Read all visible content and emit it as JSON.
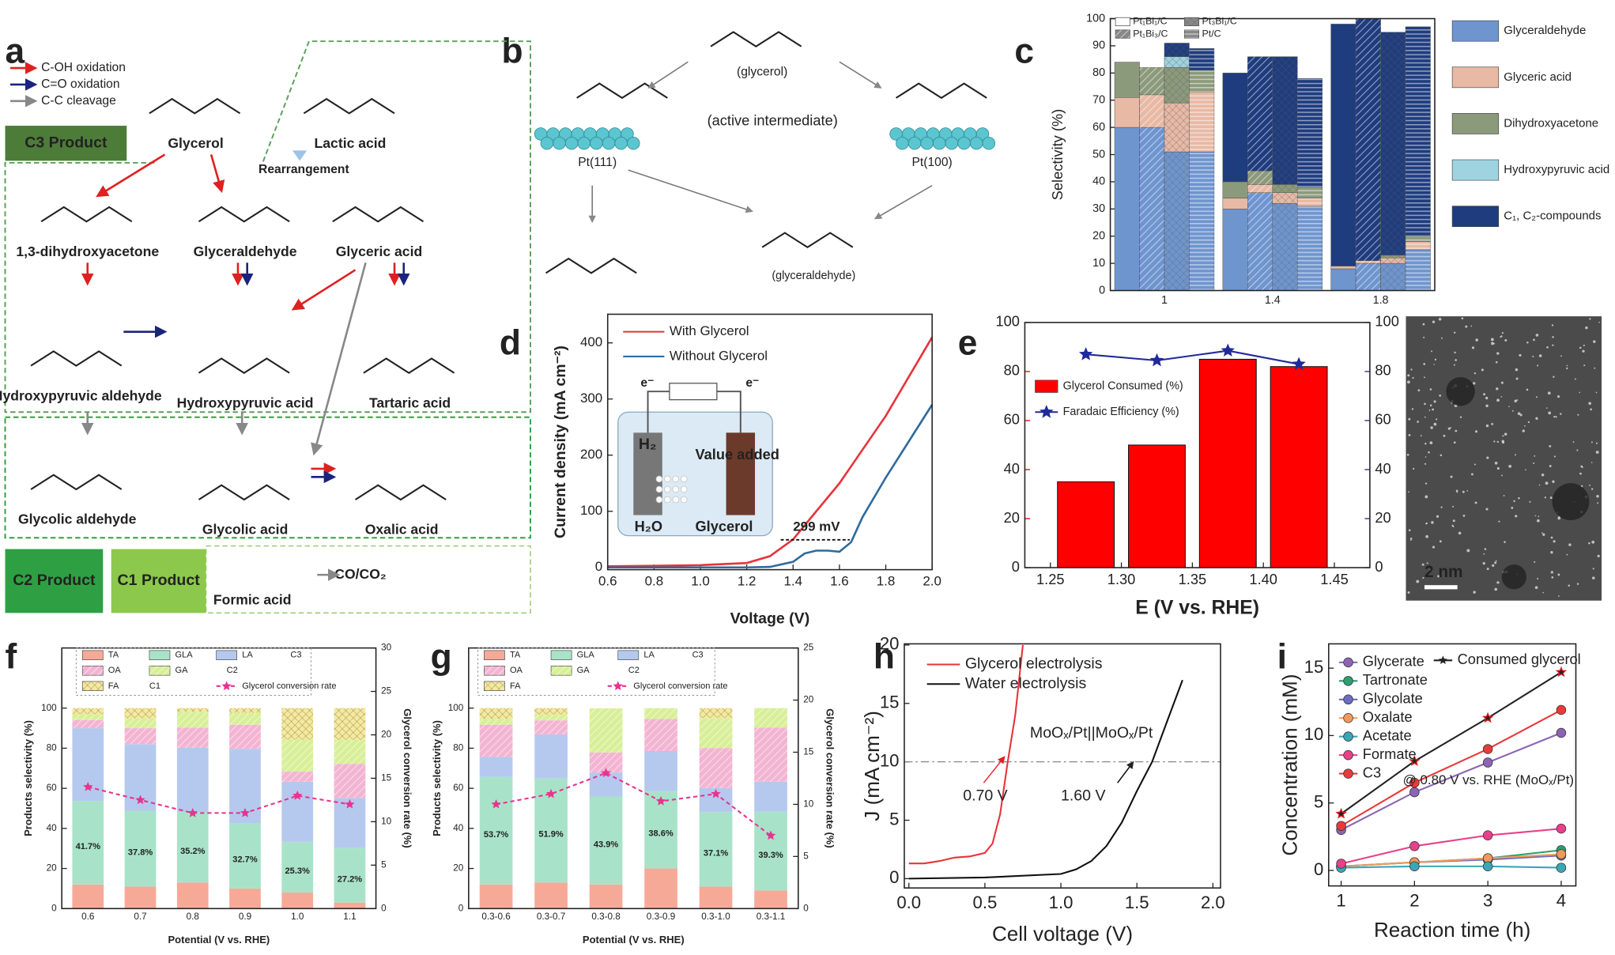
{
  "figure": {
    "panel_labels": [
      "a",
      "b",
      "c",
      "d",
      "e",
      "f",
      "g",
      "h",
      "i"
    ]
  },
  "diagram_a": {
    "legend": [
      "C-OH oxidation",
      "C=O oxidation",
      "C-C cleavage"
    ],
    "products": [
      "C3 Product",
      "C2 Product",
      "C1 Product"
    ],
    "compounds": [
      "Glycerol",
      "Lactic acid",
      "1,3-dihydroxyacetone",
      "Glyceraldehyde",
      "Glyceric acid",
      "Hydroxypyruvic aldehyde",
      "Hydroxypyruvic acid",
      "Tartaric acid",
      "Glycolic aldehyde",
      "Glycolic acid",
      "Oxalic acid",
      "Formic acid",
      "CO/CO₂"
    ],
    "note": "Rearrangement"
  },
  "diagram_b": {
    "labels": [
      "(glycerol)",
      "(active intermediate)",
      "Pt(111)",
      "Pt(100)",
      "(glyceraldehyde)"
    ]
  },
  "micrograph": {
    "scale_bar": "2 nm"
  },
  "chart_data": [
    {
      "type": "bar",
      "stacked": true,
      "ylabel": "Selectivity (%)",
      "ylim": [
        0,
        100
      ],
      "yticks": [
        0,
        10,
        20,
        30,
        40,
        50,
        60,
        70,
        80,
        90,
        100
      ],
      "categories": [
        "1",
        "1.4",
        "1.8"
      ],
      "catalysts": [
        "Pt₁Bi₁/C",
        "Pt₁Bi₃/C",
        "Pt₃Bi₁/C",
        "Pt/C"
      ],
      "patterns": [
        "none",
        "diag",
        "cross",
        "horiz"
      ],
      "series": [
        {
          "name": "Glyceraldehyde",
          "color": "#6f95cf",
          "values": [
            [
              60,
              60,
              51,
              51
            ],
            [
              30,
              36,
              32,
              31
            ],
            [
              8,
              10,
              10,
              15
            ]
          ]
        },
        {
          "name": "Glyceric acid",
          "color": "#e8b9a5",
          "values": [
            [
              11,
              12,
              18,
              22
            ],
            [
              4,
              3,
              4,
              3
            ],
            [
              1,
              1,
              2,
              3
            ]
          ]
        },
        {
          "name": "Dihydroxyacetone",
          "color": "#8c9a7c",
          "values": [
            [
              13,
              10,
              13,
              8
            ],
            [
              6,
              5,
              3,
              4
            ],
            [
              0,
              0,
              1,
              2
            ]
          ]
        },
        {
          "name": "Hydroxypyruvic acid",
          "color": "#9fd3e0",
          "values": [
            [
              0,
              0,
              4,
              0
            ],
            [
              0,
              0,
              0,
              0
            ],
            [
              0,
              0,
              0,
              0
            ]
          ]
        },
        {
          "name": "C₁, C₂-compounds",
          "color": "#1f3c7e",
          "values": [
            [
              0,
              0,
              5,
              8
            ],
            [
              40,
              42,
              47,
              40
            ],
            [
              89,
              89,
              82,
              77
            ]
          ]
        }
      ]
    },
    {
      "type": "line",
      "xlabel": "Voltage (V)",
      "ylabel": "Current density (mA cm⁻²)",
      "xlim": [
        0.6,
        2.0
      ],
      "xticks": [
        0.6,
        0.8,
        {
          "value": 1,
          "label": "1.0"
        },
        1.2,
        1.4,
        1.6,
        1.8,
        {
          "value": 2,
          "label": "2.0"
        }
      ],
      "ylim": [
        -4,
        451
      ],
      "yticks": [
        0,
        100,
        200,
        300,
        400
      ],
      "x": [
        0.6,
        0.8,
        1.0,
        1.2,
        1.3,
        1.4,
        1.45,
        1.5,
        1.55,
        1.6,
        1.65,
        1.7,
        1.8,
        1.9,
        2.0
      ],
      "series": [
        {
          "name": "With Glycerol",
          "color": "#e8333a",
          "values": [
            2,
            3,
            4,
            8,
            20,
            50,
            75,
            100,
            125,
            150,
            180,
            210,
            270,
            340,
            410
          ]
        },
        {
          "name": "Without Glycerol",
          "color": "#2f6a9e",
          "values": [
            0,
            0,
            0,
            0,
            1,
            10,
            25,
            30,
            30,
            28,
            45,
            90,
            160,
            225,
            290
          ]
        }
      ],
      "annotations": [
        "299 mV"
      ],
      "inset_labels": [
        "H₂",
        "Value added",
        "H₂O",
        "Glycerol",
        "e⁻",
        "e⁻"
      ]
    },
    {
      "type": "bar",
      "xlabel": "E (V vs. RHE)",
      "x": [
        1.275,
        1.325,
        1.375,
        1.425
      ],
      "xlim": [
        1.232,
        1.475
      ],
      "xticks": [
        1.25,
        {
          "value": 1.3,
          "label": "1.30"
        },
        1.35,
        {
          "value": 1.4,
          "label": "1.40"
        },
        1.45
      ],
      "ylim": [
        0,
        100
      ],
      "yticks": [
        0,
        20,
        40,
        60,
        80,
        100
      ],
      "y2lim": [
        0,
        100
      ],
      "y2ticks": [
        0,
        20,
        40,
        60,
        80,
        100
      ],
      "y_color": "#e00000",
      "y2_color": "#1f2a8a",
      "series": [
        {
          "name": "Glycerol Consumed (%)",
          "color": "#ff0000",
          "values": [
            35,
            50,
            85,
            82
          ]
        },
        {
          "name": "Faradaic Efficiency (%)",
          "color": "#1f2a9a",
          "type": "line",
          "axis": "y2",
          "marker": "star",
          "values": [
            87,
            84.5,
            88.5,
            83
          ]
        }
      ]
    },
    {
      "type": "bar",
      "stacked": true,
      "xlabel": "Potential (V vs. RHE)",
      "ylabel": "Products selectivity (%)",
      "y2label": "Glycerol conversion rate (%)",
      "categories": [
        "0.6",
        "0.7",
        "0.8",
        "0.9",
        "1.0",
        "1.1"
      ],
      "ylim": [
        0,
        130
      ],
      "yticks": [
        0,
        20,
        40,
        60,
        80,
        100
      ],
      "y2lim": [
        0,
        30
      ],
      "y2ticks": [
        0,
        5,
        10,
        15,
        20,
        25,
        30
      ],
      "legend_groups": [
        "C3",
        "C2",
        "C1"
      ],
      "series": [
        {
          "name": "TA",
          "color": "#f7a998",
          "values": [
            12,
            11,
            13,
            10,
            8,
            3
          ]
        },
        {
          "name": "GLA",
          "color": "#a8e3c9",
          "values": [
            41.7,
            37.8,
            35.2,
            32.7,
            25.3,
            27.2
          ],
          "value_labels": [
            "41.7%",
            "37.8%",
            "35.2%",
            "32.7%",
            "25.3%",
            "27.2%"
          ]
        },
        {
          "name": "LA",
          "color": "#b5c9ee",
          "values": [
            36.3,
            33.2,
            32,
            37,
            30,
            25
          ]
        },
        {
          "name": "OA",
          "color": "#f3b4d2",
          "hatch": "diag",
          "values": [
            4,
            8,
            10,
            12,
            5,
            17
          ]
        },
        {
          "name": "GA",
          "color": "#d8ef98",
          "hatch": "diag",
          "values": [
            3,
            5,
            8,
            6,
            16,
            12
          ]
        },
        {
          "name": "FA",
          "color": "#f6e99a",
          "hatch": "cross",
          "values": [
            3,
            5,
            1.8,
            2.3,
            15.7,
            15.8
          ]
        },
        {
          "name": "Glycerol conversion rate",
          "color": "#e8338f",
          "type": "line",
          "axis": "y2",
          "marker": "star",
          "dash": true,
          "values": [
            14,
            12.5,
            11,
            11,
            13,
            12
          ]
        }
      ]
    },
    {
      "type": "bar",
      "stacked": true,
      "xlabel": "Potential (V vs. RHE)",
      "ylabel": "Products selectivity (%)",
      "y2label": "Glycerol conversion rate (%)",
      "categories": [
        "0.3-0.6",
        "0.3-0.7",
        "0.3-0.8",
        "0.3-0.9",
        "0.3-1.0",
        "0.3-1.1"
      ],
      "ylim": [
        0,
        130
      ],
      "yticks": [
        0,
        20,
        40,
        60,
        80,
        100
      ],
      "y2lim": [
        0,
        25
      ],
      "y2ticks": [
        0,
        5,
        10,
        15,
        20,
        25
      ],
      "legend_groups": [
        "C3",
        "C2"
      ],
      "series": [
        {
          "name": "TA",
          "color": "#f7a998",
          "values": [
            12,
            13,
            12,
            20,
            11,
            9
          ]
        },
        {
          "name": "GLA",
          "color": "#a8e3c9",
          "values": [
            53.7,
            51.9,
            43.9,
            38.6,
            37.1,
            39.3
          ],
          "value_labels": [
            "53.7%",
            "51.9%",
            "43.9%",
            "38.6%",
            "37.1%",
            "39.3%"
          ]
        },
        {
          "name": "LA",
          "color": "#b5c9ee",
          "values": [
            10,
            22,
            12,
            20,
            12,
            15
          ]
        },
        {
          "name": "OA",
          "color": "#f3b4d2",
          "hatch": "diag",
          "values": [
            16,
            7,
            10,
            16,
            20,
            27
          ]
        },
        {
          "name": "GA",
          "color": "#d8ef98",
          "hatch": "diag",
          "values": [
            3,
            3,
            22,
            5.4,
            15,
            9.7
          ]
        },
        {
          "name": "FA",
          "color": "#f6e99a",
          "hatch": "cross",
          "values": [
            5.3,
            3.1,
            0,
            0,
            4.9,
            0
          ]
        },
        {
          "name": "Glycerol conversion rate",
          "color": "#e8338f",
          "type": "line",
          "axis": "y2",
          "marker": "star",
          "dash": true,
          "values": [
            10,
            11,
            13,
            10.3,
            11,
            7
          ]
        }
      ]
    },
    {
      "type": "line",
      "xlabel": "Cell voltage (V)",
      "ylabel": "J (mA cm⁻²)",
      "xlim": [
        -0.03,
        2.05
      ],
      "xticks": [
        {
          "value": 0,
          "label": "0.0"
        },
        0.5,
        {
          "value": 1,
          "label": "1.0"
        },
        1.5,
        {
          "value": 2,
          "label": "2.0"
        }
      ],
      "ylim": [
        -0.8,
        20.1
      ],
      "yticks": [
        0,
        5,
        10,
        15,
        20
      ],
      "reference_line": 10,
      "series": [
        {
          "name": "Glycerol electrolysis",
          "color": "#e8333a",
          "x": [
            0,
            0.1,
            0.2,
            0.3,
            0.4,
            0.5,
            0.55,
            0.6,
            0.65,
            0.7,
            0.75
          ],
          "values": [
            1.3,
            1.3,
            1.5,
            1.8,
            1.9,
            2.2,
            3,
            5.5,
            10,
            14,
            20
          ]
        },
        {
          "name": "Water electrolysis",
          "color": "#111111",
          "x": [
            0,
            0.5,
            1.0,
            1.1,
            1.2,
            1.3,
            1.4,
            1.5,
            1.6,
            1.7,
            1.8
          ],
          "values": [
            0,
            0.1,
            0.4,
            0.8,
            1.5,
            2.8,
            4.8,
            7.5,
            10,
            13.5,
            17
          ]
        }
      ],
      "annotations": [
        "MoOₓ/Pt||MoOₓ/Pt",
        "0.70 V",
        "1.60 V"
      ]
    },
    {
      "type": "line",
      "xlabel": "Reaction time (h)",
      "ylabel": "Concentration (mM)",
      "xlim": [
        0.83,
        4.2
      ],
      "xticks": [
        1,
        2,
        3,
        4
      ],
      "ylim": [
        -1.15,
        16.8
      ],
      "yticks": [
        0,
        5,
        10,
        15
      ],
      "x": [
        1,
        2,
        3,
        4
      ],
      "series": [
        {
          "name": "Glycerate",
          "color": "#8c64b4",
          "marker": "circle",
          "values": [
            3.0,
            5.8,
            8.0,
            10.2
          ]
        },
        {
          "name": "Tartronate",
          "color": "#2e9e6e",
          "marker": "circle",
          "values": [
            0.3,
            0.6,
            0.9,
            1.5
          ]
        },
        {
          "name": "Glycolate",
          "color": "#6c6cc0",
          "marker": "circle",
          "values": [
            0.3,
            0.6,
            0.8,
            1.1
          ]
        },
        {
          "name": "Oxalate",
          "color": "#f09a5a",
          "marker": "circle",
          "values": [
            0.3,
            0.6,
            0.9,
            1.2
          ]
        },
        {
          "name": "Acetate",
          "color": "#3aa6b8",
          "marker": "circle",
          "values": [
            0.2,
            0.3,
            0.3,
            0.2
          ]
        },
        {
          "name": "Formate",
          "color": "#e8408a",
          "marker": "circle",
          "values": [
            0.5,
            1.8,
            2.6,
            3.1
          ]
        },
        {
          "name": "C3",
          "color": "#e83a3a",
          "marker": "circle",
          "values": [
            3.3,
            6.5,
            9.0,
            11.9
          ]
        },
        {
          "name": "Consumed glycerol",
          "color": "#222222",
          "marker": "star",
          "values": [
            4.2,
            8.1,
            11.3,
            14.7
          ]
        }
      ],
      "annotations": [
        "@ 0.80 V vs. RHE (MoOₓ/Pt)"
      ]
    }
  ]
}
